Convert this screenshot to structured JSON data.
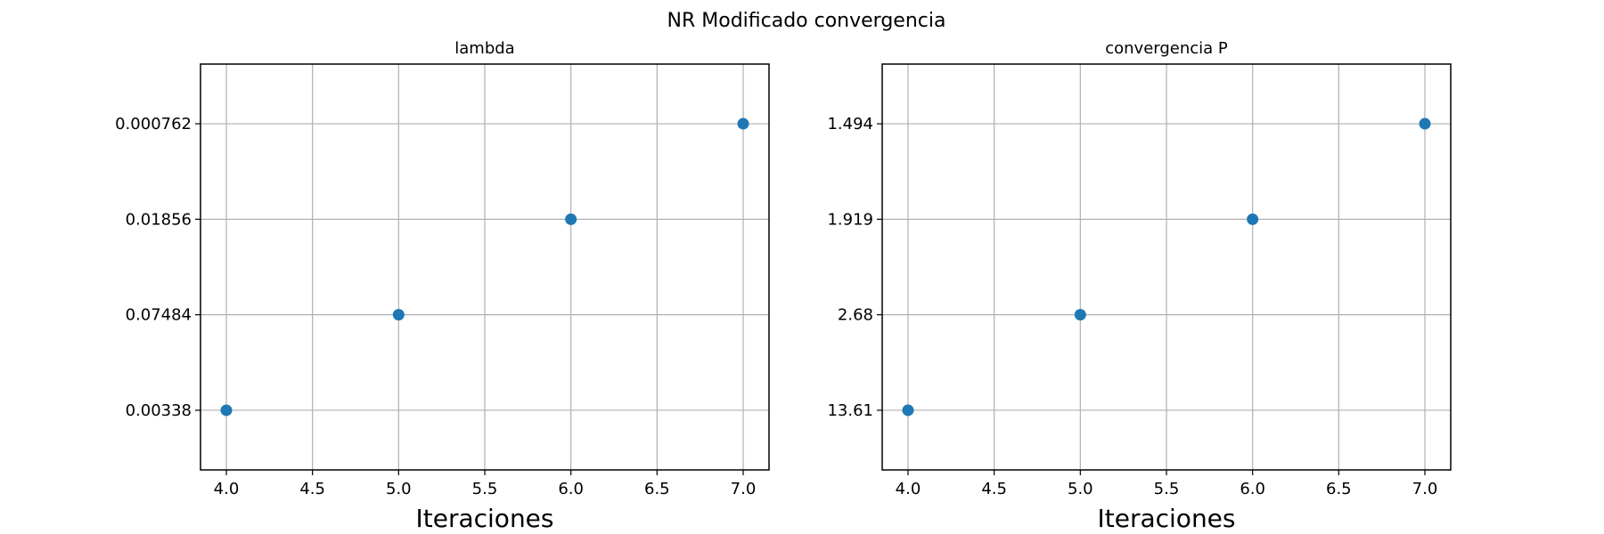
{
  "figure": {
    "title": "NR Modificado convergencia"
  },
  "chart_data": [
    {
      "type": "scatter",
      "title": "lambda",
      "xlabel": "Iteraciones",
      "ylabel": "",
      "x": [
        4.0,
        5.0,
        6.0,
        7.0
      ],
      "y_categories": [
        "0.00338",
        "0.07484",
        "0.01856",
        "0.000762"
      ],
      "points": [
        {
          "x": 4.0,
          "y": "0.00338"
        },
        {
          "x": 5.0,
          "y": "0.07484"
        },
        {
          "x": 6.0,
          "y": "0.01856"
        },
        {
          "x": 7.0,
          "y": "0.000762"
        }
      ],
      "xlim": [
        3.85,
        7.15
      ],
      "xticks": [
        "4.0",
        "4.5",
        "5.0",
        "5.5",
        "6.0",
        "6.5",
        "7.0"
      ],
      "grid": true,
      "marker_color": "#1f77b4"
    },
    {
      "type": "scatter",
      "title": "convergencia P",
      "xlabel": "Iteraciones",
      "ylabel": "",
      "x": [
        4.0,
        5.0,
        6.0,
        7.0
      ],
      "y_categories": [
        "13.61",
        "2.68",
        "1.919",
        "1.494"
      ],
      "points": [
        {
          "x": 4.0,
          "y": "13.61"
        },
        {
          "x": 5.0,
          "y": "2.68"
        },
        {
          "x": 6.0,
          "y": "1.919"
        },
        {
          "x": 7.0,
          "y": "1.494"
        }
      ],
      "xlim": [
        3.85,
        7.15
      ],
      "xticks": [
        "4.0",
        "4.5",
        "5.0",
        "5.5",
        "6.0",
        "6.5",
        "7.0"
      ],
      "grid": true,
      "marker_color": "#1f77b4"
    }
  ]
}
